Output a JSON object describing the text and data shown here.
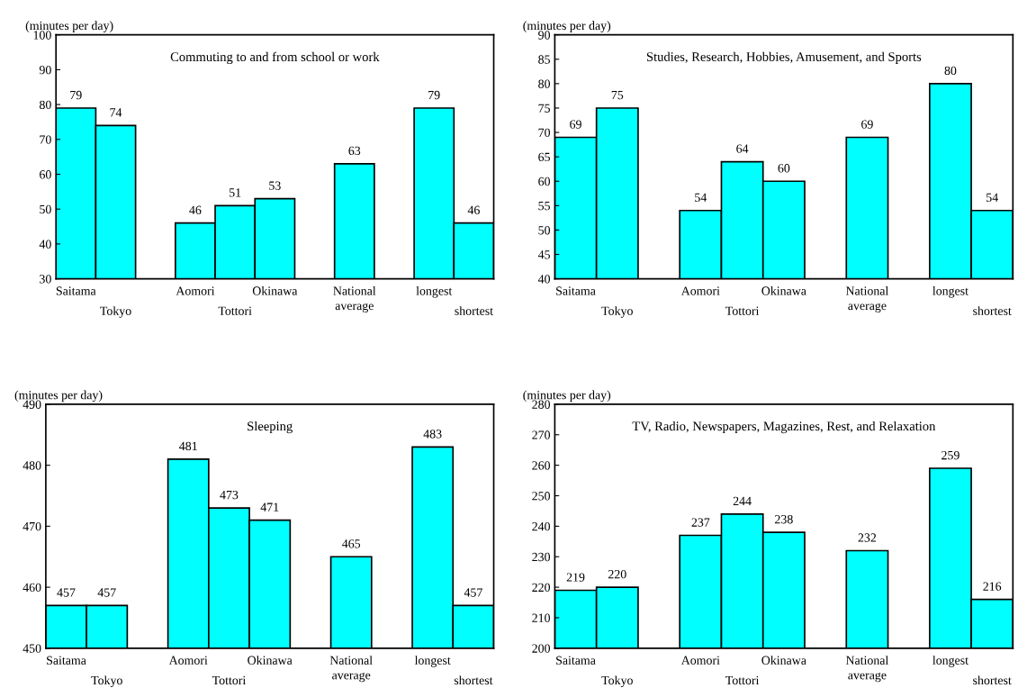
{
  "chart_data": [
    {
      "type": "bar",
      "title": "Commuting to and from school or work",
      "ylabel": "(minutes per day)",
      "categories": [
        "Saitama",
        "Tokyo",
        null,
        "Aomori",
        "Tottori",
        "Okinawa",
        null,
        "National\naverage",
        null,
        "longest",
        "shortest"
      ],
      "values": [
        79,
        74,
        null,
        46,
        51,
        53,
        null,
        63,
        null,
        79,
        46
      ],
      "color": "#00ffff",
      "ylim": [
        30,
        100
      ],
      "yticks": [
        30,
        40,
        50,
        60,
        70,
        80,
        90,
        100
      ],
      "data_labels": true,
      "grid": false
    },
    {
      "type": "bar",
      "title": "Studies, Research, Hobbies, Amusement, and Sports",
      "ylabel": "(minutes per day)",
      "categories": [
        "Saitama",
        "Tokyo",
        null,
        "Aomori",
        "Tottori",
        "Okinawa",
        null,
        "National\naverage",
        null,
        "longest",
        "shortest"
      ],
      "values": [
        69,
        75,
        null,
        54,
        64,
        60,
        null,
        69,
        null,
        80,
        54
      ],
      "color": "#00ffff",
      "ylim": [
        40,
        90
      ],
      "yticks": [
        40,
        45,
        50,
        55,
        60,
        65,
        70,
        75,
        80,
        85,
        90
      ],
      "data_labels": true,
      "grid": false
    },
    {
      "type": "bar",
      "title": "Sleeping",
      "ylabel": "(minutes per day)",
      "categories": [
        "Saitama",
        "Tokyo",
        null,
        "Aomori",
        "Tottori",
        "Okinawa",
        null,
        "National\naverage",
        null,
        "longest",
        "shortest"
      ],
      "values": [
        457,
        457,
        null,
        481,
        473,
        471,
        null,
        465,
        null,
        483,
        457
      ],
      "color": "#00ffff",
      "ylim": [
        450,
        490
      ],
      "yticks": [
        450,
        460,
        470,
        480,
        490
      ],
      "data_labels": true,
      "grid": false
    },
    {
      "type": "bar",
      "title": "TV, Radio, Newspapers, Magazines, Rest, and Relaxation",
      "ylabel": "(minutes per day)",
      "categories": [
        "Saitama",
        "Tokyo",
        null,
        "Aomori",
        "Tottori",
        "Okinawa",
        null,
        "National\naverage",
        null,
        "longest",
        "shortest"
      ],
      "values": [
        219,
        220,
        null,
        237,
        244,
        238,
        null,
        232,
        null,
        259,
        216
      ],
      "color": "#00ffff",
      "ylim": [
        200,
        280
      ],
      "yticks": [
        200,
        210,
        220,
        230,
        240,
        250,
        260,
        270,
        280
      ],
      "data_labels": true,
      "grid": false
    }
  ]
}
